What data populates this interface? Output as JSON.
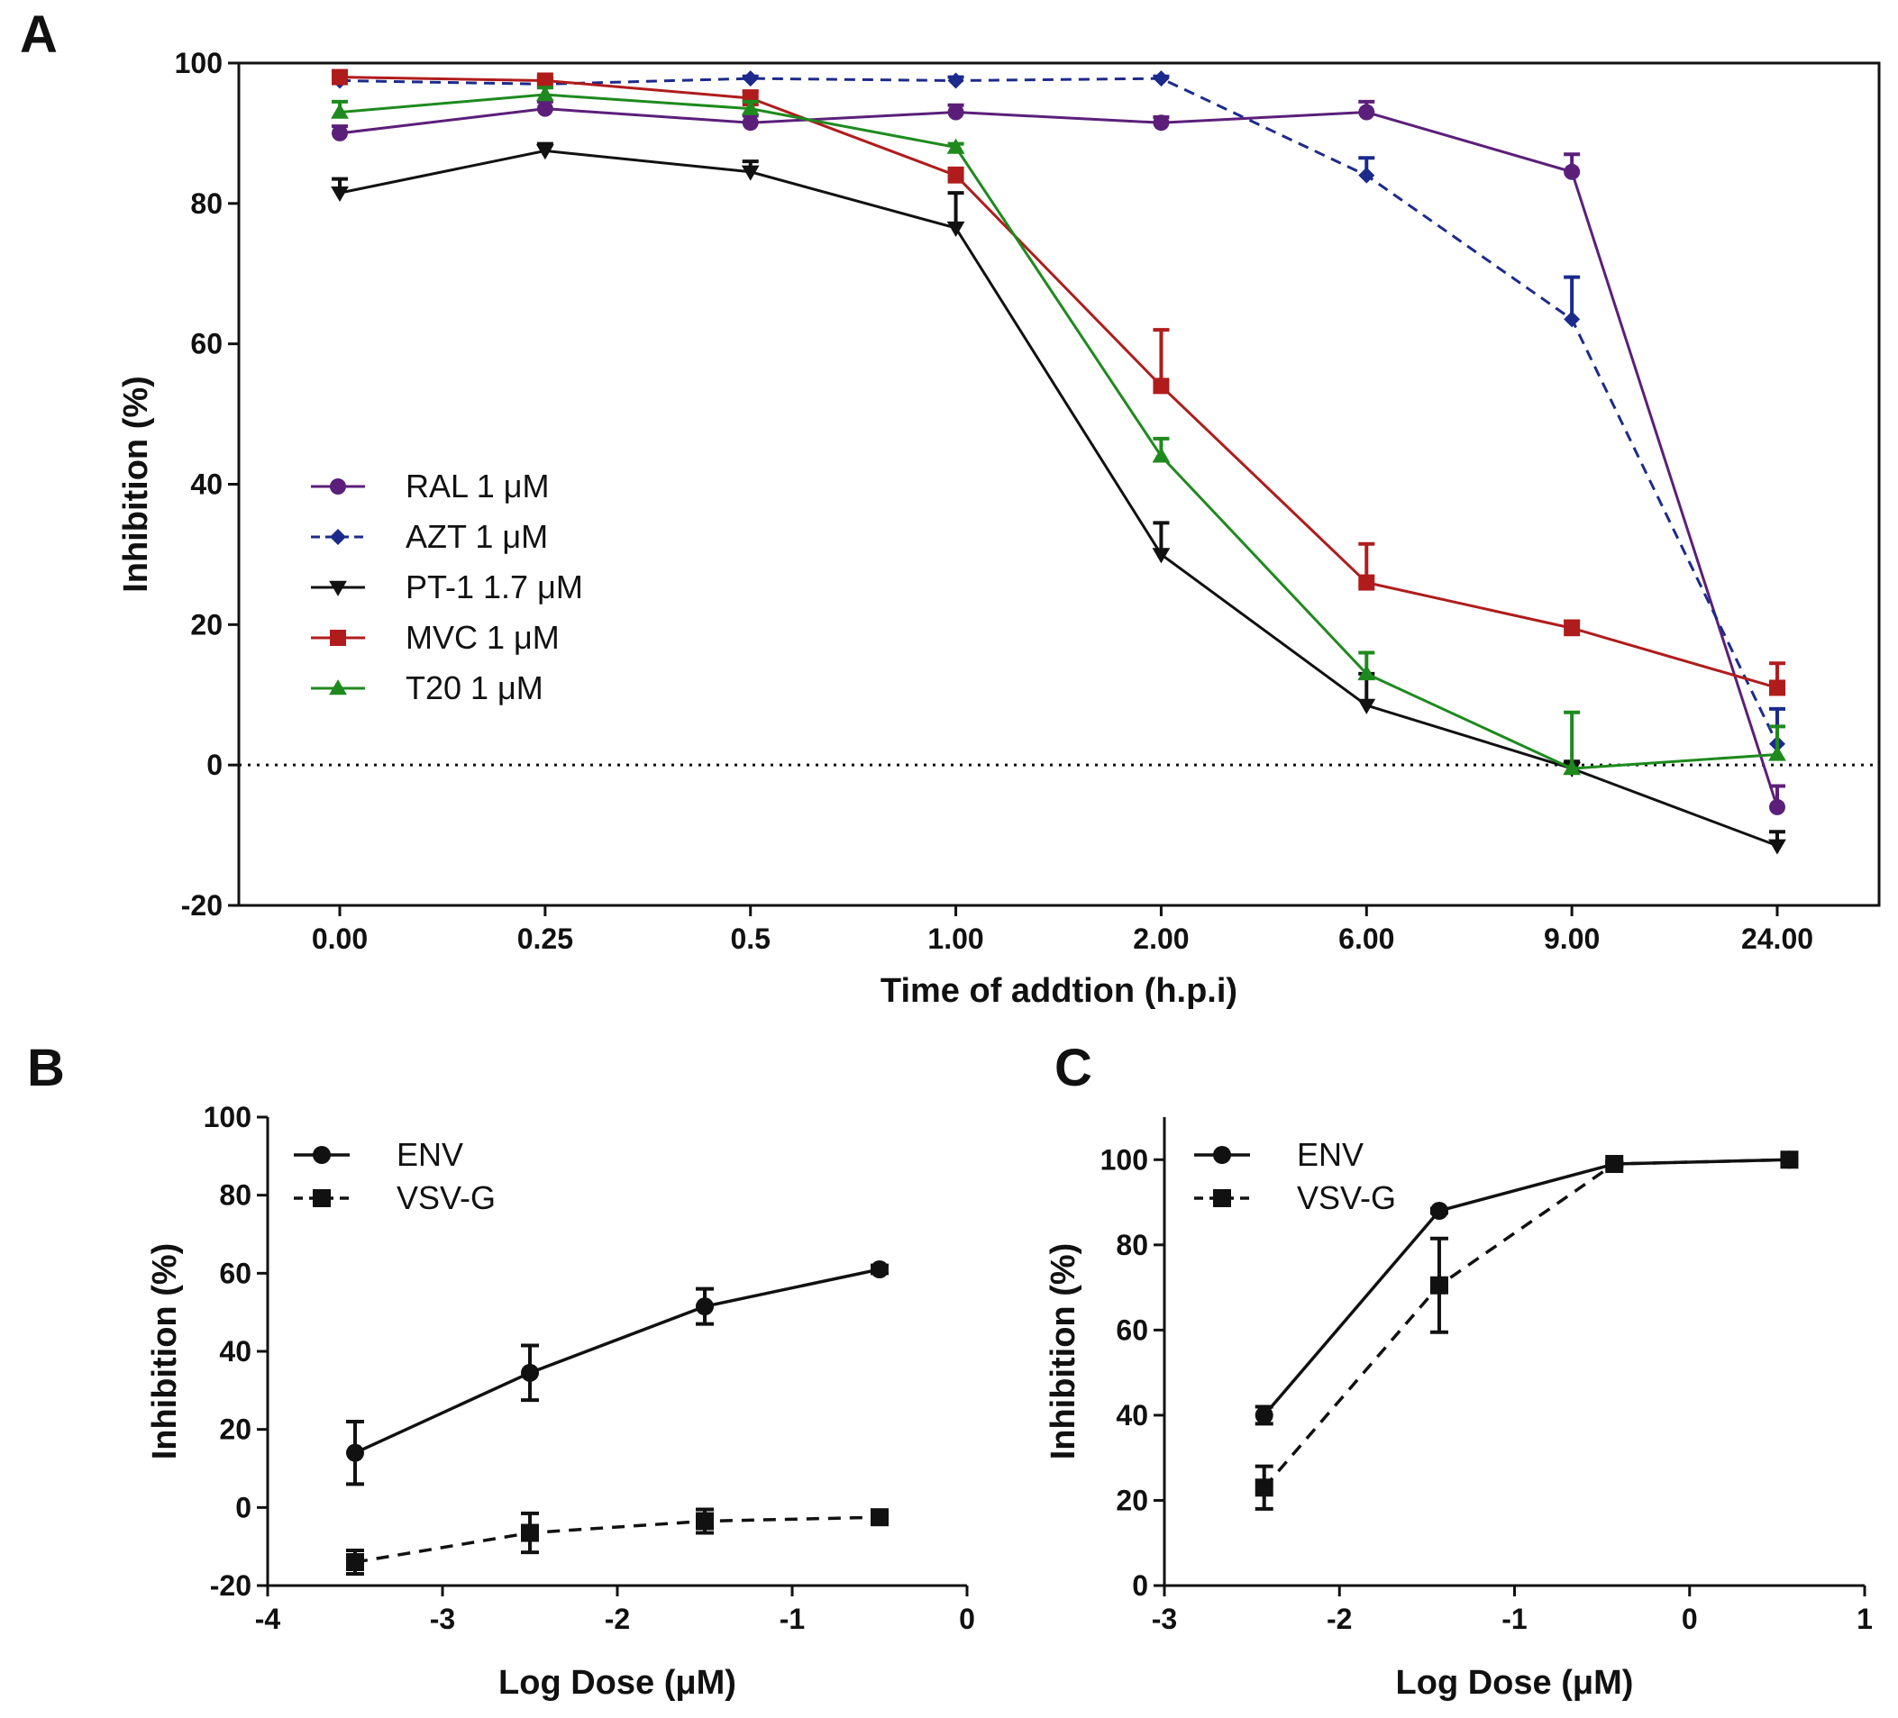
{
  "chart_data": [
    {
      "panel": "A",
      "type": "line",
      "xlabel": "Time of addtion (h.p.i)",
      "ylabel": "Inhibition (%)",
      "categories": [
        "0.00",
        "0.25",
        "0.5",
        "1.00",
        "2.00",
        "6.00",
        "9.00",
        "24.00"
      ],
      "ylim": [
        -20,
        100
      ],
      "yticks": [
        "-20",
        "0",
        "20",
        "40",
        "60",
        "80",
        "100"
      ],
      "reference_line": 0,
      "legend_position": "center-left",
      "series": [
        {
          "name": "RAL 1 μM",
          "color": "#5b1f7a",
          "marker": "circle",
          "dash": false,
          "values": [
            90,
            93.5,
            91.5,
            93,
            91.5,
            93,
            84.5,
            -6
          ],
          "errors": [
            1,
            1,
            1,
            1,
            0.8,
            1.5,
            2.5,
            3
          ]
        },
        {
          "name": "AZT 1 μM",
          "color": "#1c2a8c",
          "marker": "diamond",
          "dash": true,
          "values": [
            97.5,
            97,
            97.8,
            97.5,
            97.8,
            84,
            63.5,
            3
          ],
          "errors": [
            0.5,
            0.5,
            0.3,
            0.5,
            0.3,
            2.5,
            6,
            5
          ]
        },
        {
          "name": "PT-1 1.7 μM",
          "color": "#111111",
          "marker": "triangle-down",
          "dash": false,
          "values": [
            81.5,
            87.5,
            84.5,
            76.5,
            30,
            8.5,
            -0.5,
            -11.5
          ],
          "errors": [
            2,
            1,
            1.5,
            5,
            4.5,
            4.5,
            1,
            2
          ]
        },
        {
          "name": "MVC 1 μM",
          "color": "#b01c1c",
          "marker": "square",
          "dash": false,
          "values": [
            98,
            97.5,
            95,
            84,
            54,
            26,
            19.5,
            11
          ],
          "errors": [
            0.5,
            0.5,
            1,
            1,
            8,
            5.5,
            1,
            3.5
          ]
        },
        {
          "name": "T20 1 μM",
          "color": "#1e8a1e",
          "marker": "triangle-up",
          "dash": false,
          "values": [
            93,
            95.5,
            93.5,
            88,
            44,
            13,
            -0.5,
            1.5
          ],
          "errors": [
            1.5,
            1,
            1,
            0.5,
            2.5,
            3,
            8,
            4
          ]
        }
      ]
    },
    {
      "panel": "B",
      "type": "line",
      "xlabel": "Log Dose (μM)",
      "ylabel": "Inhibition (%)",
      "xlim": [
        -4,
        0
      ],
      "ylim": [
        -20,
        100
      ],
      "xticks": [
        "-4",
        "-3",
        "-2",
        "-1",
        "0"
      ],
      "yticks": [
        "-20",
        "0",
        "20",
        "40",
        "60",
        "80",
        "100"
      ],
      "legend_position": "top-left",
      "series": [
        {
          "name": "ENV",
          "marker": "circle",
          "dash": false,
          "color": "#111111",
          "x": [
            -3.5,
            -2.5,
            -1.5,
            -0.5
          ],
          "values": [
            14,
            34.5,
            51.5,
            61
          ],
          "errors": [
            8,
            7,
            4.5,
            1
          ]
        },
        {
          "name": "VSV-G",
          "marker": "square",
          "dash": true,
          "color": "#111111",
          "x": [
            -3.5,
            -2.5,
            -1.5,
            -0.5
          ],
          "values": [
            -14,
            -6.5,
            -3.5,
            -2.5
          ],
          "errors": [
            3,
            5,
            3,
            1
          ]
        }
      ]
    },
    {
      "panel": "C",
      "type": "line",
      "xlabel": "Log Dose (μM)",
      "ylabel": "Inhibition (%)",
      "xlim": [
        -3,
        1
      ],
      "ylim": [
        0,
        110
      ],
      "xticks": [
        "-3",
        "-2",
        "-1",
        "0",
        "1"
      ],
      "yticks": [
        "0",
        "20",
        "40",
        "60",
        "80",
        "100"
      ],
      "legend_position": "top-left",
      "series": [
        {
          "name": "ENV",
          "marker": "circle",
          "dash": false,
          "color": "#111111",
          "x": [
            -2.43,
            -1.43,
            -0.43,
            0.57
          ],
          "values": [
            40,
            88,
            99,
            100
          ],
          "errors": [
            2,
            0.5,
            0.5,
            0.3
          ]
        },
        {
          "name": "VSV-G",
          "marker": "square",
          "dash": true,
          "color": "#111111",
          "x": [
            -2.43,
            -1.43,
            -0.43,
            0.57
          ],
          "values": [
            23,
            70.5,
            99,
            100
          ],
          "errors": [
            5,
            11,
            0.5,
            0.3
          ]
        }
      ]
    }
  ]
}
